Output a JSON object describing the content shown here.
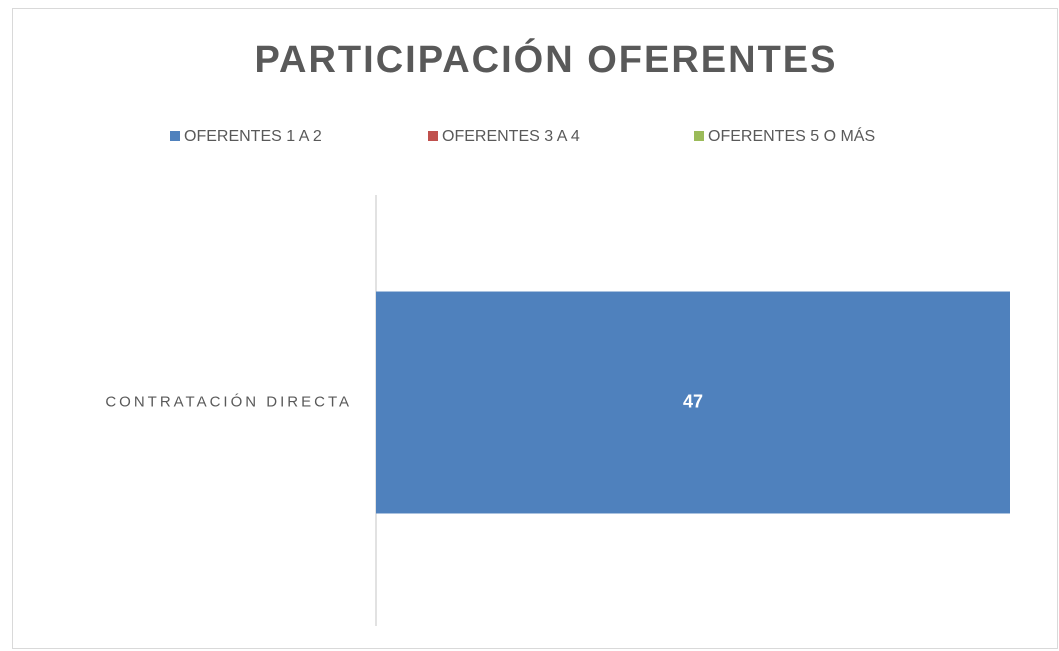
{
  "chart_data": {
    "type": "stacked-barh",
    "title": "PARTICIPACIÓN OFERENTES",
    "categories": [
      "CONTRATACIÓN DIRECTA"
    ],
    "series": [
      {
        "name": "OFERENTES 1 A 2",
        "color": "#4f81bd",
        "values": [
          47
        ]
      },
      {
        "name": "OFERENTES 3 A 4",
        "color": "#c0504d",
        "values": [
          0
        ]
      },
      {
        "name": "OFERENTES 5 O MÁS",
        "color": "#9bbb59",
        "values": [
          0
        ]
      }
    ],
    "xlim": [
      0,
      47
    ],
    "legend": "top"
  }
}
